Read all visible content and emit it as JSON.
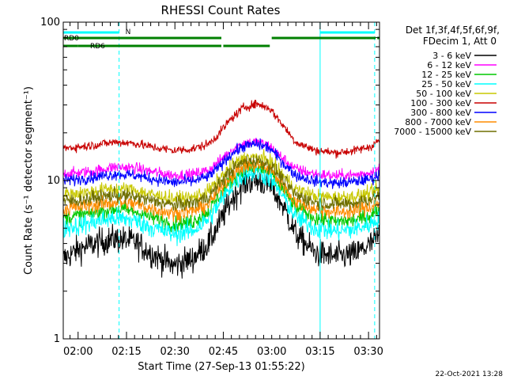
{
  "chart_data": {
    "type": "line",
    "title": "RHESSI Count Rates",
    "xlabel": "Start Time (27-Sep-13 01:55:22)",
    "ylabel": "Count Rate (s⁻¹ detector segment⁻¹)",
    "xlim_minutes": [
      0,
      98
    ],
    "ylim": [
      1,
      100
    ],
    "y_scale": "log",
    "x_ticks": [
      {
        "label": "02:00",
        "minutes": 4.6
      },
      {
        "label": "02:15",
        "minutes": 19.6
      },
      {
        "label": "02:30",
        "minutes": 34.6
      },
      {
        "label": "02:45",
        "minutes": 49.6
      },
      {
        "label": "03:00",
        "minutes": 64.6
      },
      {
        "label": "03:15",
        "minutes": 79.6
      },
      {
        "label": "03:30",
        "minutes": 94.6
      }
    ],
    "y_ticks": [
      {
        "label": "1",
        "value": 1
      },
      {
        "label": "10",
        "value": 10
      },
      {
        "label": "100",
        "value": 100
      }
    ],
    "legend_header": [
      "Det 1f,3f,4f,5f,6f,9f,",
      "FDecim 1, Att 0"
    ],
    "legend_position": "right",
    "series": [
      {
        "name": "3 - 6 keV",
        "color": "#000000",
        "x": [
          0,
          5,
          10,
          16,
          22,
          28,
          34,
          40,
          45,
          48,
          52,
          56,
          60,
          64,
          68,
          72,
          78,
          84,
          90,
          95,
          98
        ],
        "y": [
          3.2,
          3.7,
          4.0,
          4.3,
          4.1,
          3.4,
          2.9,
          3.2,
          4.0,
          5.2,
          7.5,
          9.6,
          10.0,
          9.3,
          7.0,
          4.6,
          3.5,
          3.3,
          3.4,
          3.9,
          4.5
        ]
      },
      {
        "name": "6 - 12 keV",
        "color": "#ff00ff",
        "x": [
          0,
          5,
          10,
          16,
          22,
          28,
          34,
          40,
          45,
          48,
          52,
          56,
          60,
          64,
          68,
          72,
          78,
          84,
          90,
          95,
          98
        ],
        "y": [
          11.0,
          11.2,
          11.5,
          12.2,
          12.0,
          11.3,
          10.8,
          10.9,
          11.6,
          13.0,
          15.5,
          17.2,
          17.5,
          16.5,
          13.8,
          11.8,
          11.0,
          10.7,
          10.8,
          11.2,
          11.8
        ]
      },
      {
        "name": "12 - 25 keV",
        "color": "#00c800",
        "x": [
          0,
          5,
          10,
          16,
          22,
          28,
          34,
          40,
          45,
          48,
          52,
          56,
          60,
          64,
          68,
          72,
          78,
          84,
          90,
          95,
          98
        ],
        "y": [
          5.8,
          6.0,
          6.3,
          6.6,
          6.4,
          5.8,
          5.3,
          5.5,
          6.4,
          7.8,
          10.0,
          11.8,
          12.0,
          11.2,
          8.8,
          6.7,
          5.8,
          5.5,
          5.6,
          6.0,
          6.6
        ]
      },
      {
        "name": "25 - 50 keV",
        "color": "#00ffff",
        "x": [
          0,
          5,
          10,
          16,
          22,
          28,
          34,
          40,
          45,
          48,
          52,
          56,
          60,
          64,
          68,
          72,
          78,
          84,
          90,
          95,
          98
        ],
        "y": [
          5.0,
          5.2,
          5.5,
          5.8,
          5.6,
          5.0,
          4.6,
          4.8,
          5.7,
          7.0,
          9.2,
          11.0,
          11.3,
          10.4,
          8.0,
          5.9,
          5.0,
          4.8,
          4.9,
          5.3,
          5.8
        ]
      },
      {
        "name": "50 - 100 keV",
        "color": "#c8c800",
        "x": [
          0,
          5,
          10,
          16,
          22,
          28,
          34,
          40,
          45,
          48,
          52,
          56,
          60,
          64,
          68,
          72,
          78,
          84,
          90,
          95,
          98
        ],
        "y": [
          8.2,
          8.3,
          8.6,
          8.9,
          8.7,
          8.1,
          7.7,
          7.8,
          8.6,
          10.0,
          12.3,
          13.8,
          14.1,
          13.3,
          10.9,
          8.8,
          8.0,
          7.8,
          7.9,
          8.3,
          8.9
        ]
      },
      {
        "name": "100 - 300 keV",
        "color": "#c80000",
        "x": [
          0,
          5,
          10,
          16,
          22,
          28,
          34,
          40,
          45,
          48,
          52,
          56,
          60,
          64,
          68,
          72,
          78,
          84,
          90,
          95,
          98
        ],
        "y": [
          16.0,
          16.3,
          16.8,
          17.5,
          17.2,
          16.2,
          15.5,
          15.8,
          17.0,
          19.5,
          24.5,
          29.0,
          30.5,
          28.5,
          22.5,
          17.5,
          15.5,
          15.0,
          15.4,
          16.3,
          18.0
        ]
      },
      {
        "name": "300 - 800 keV",
        "color": "#0000ff",
        "x": [
          0,
          5,
          10,
          16,
          22,
          28,
          34,
          40,
          45,
          48,
          52,
          56,
          60,
          64,
          68,
          72,
          78,
          84,
          90,
          95,
          98
        ],
        "y": [
          10.0,
          10.2,
          10.5,
          11.0,
          10.8,
          10.2,
          9.7,
          9.9,
          10.6,
          12.0,
          14.7,
          16.5,
          17.0,
          16.0,
          13.0,
          10.8,
          9.9,
          9.6,
          9.8,
          10.2,
          10.8
        ]
      },
      {
        "name": "800 - 7000 keV",
        "color": "#ff8c00",
        "x": [
          0,
          5,
          10,
          16,
          22,
          28,
          34,
          40,
          45,
          48,
          52,
          56,
          60,
          64,
          68,
          72,
          78,
          84,
          90,
          95,
          98
        ],
        "y": [
          6.6,
          6.8,
          7.0,
          7.3,
          7.1,
          6.6,
          6.2,
          6.4,
          7.1,
          8.5,
          10.7,
          12.3,
          12.6,
          11.8,
          9.4,
          7.3,
          6.6,
          6.3,
          6.4,
          6.8,
          7.3
        ]
      },
      {
        "name": "7000 - 15000 keV",
        "color": "#6e6e00",
        "x": [
          0,
          5,
          10,
          16,
          22,
          28,
          34,
          40,
          45,
          48,
          52,
          56,
          60,
          64,
          68,
          72,
          78,
          84,
          90,
          95,
          98
        ],
        "y": [
          7.4,
          7.5,
          7.8,
          8.1,
          7.9,
          7.4,
          7.0,
          7.2,
          7.9,
          9.3,
          11.6,
          13.1,
          13.4,
          12.6,
          10.2,
          8.1,
          7.3,
          7.1,
          7.2,
          7.6,
          8.1
        ]
      }
    ],
    "attenuator_state": [
      {
        "label": "RD0",
        "color": "#008000",
        "segments": [
          [
            0,
            49.0
          ],
          [
            49.6,
            64.0
          ],
          [
            64.6,
            96.8
          ],
          [
            97.3,
            98
          ]
        ]
      },
      {
        "label": "RD6",
        "color": "#008000",
        "segments": [
          [
            0,
            4.6
          ],
          [
            4.6,
            49.0
          ]
        ]
      }
    ],
    "night_markers": {
      "label": "N",
      "color": "#00ffff",
      "solid_lines_minutes": [
        0,
        79.6
      ],
      "dashed_lines_minutes": [
        17.3,
        96.5
      ],
      "bars": [
        [
          0,
          17.3
        ],
        [
          79.6,
          96.5
        ]
      ]
    },
    "grid": false
  },
  "footer": {
    "timestamp": "22-Oct-2021 13:28"
  }
}
